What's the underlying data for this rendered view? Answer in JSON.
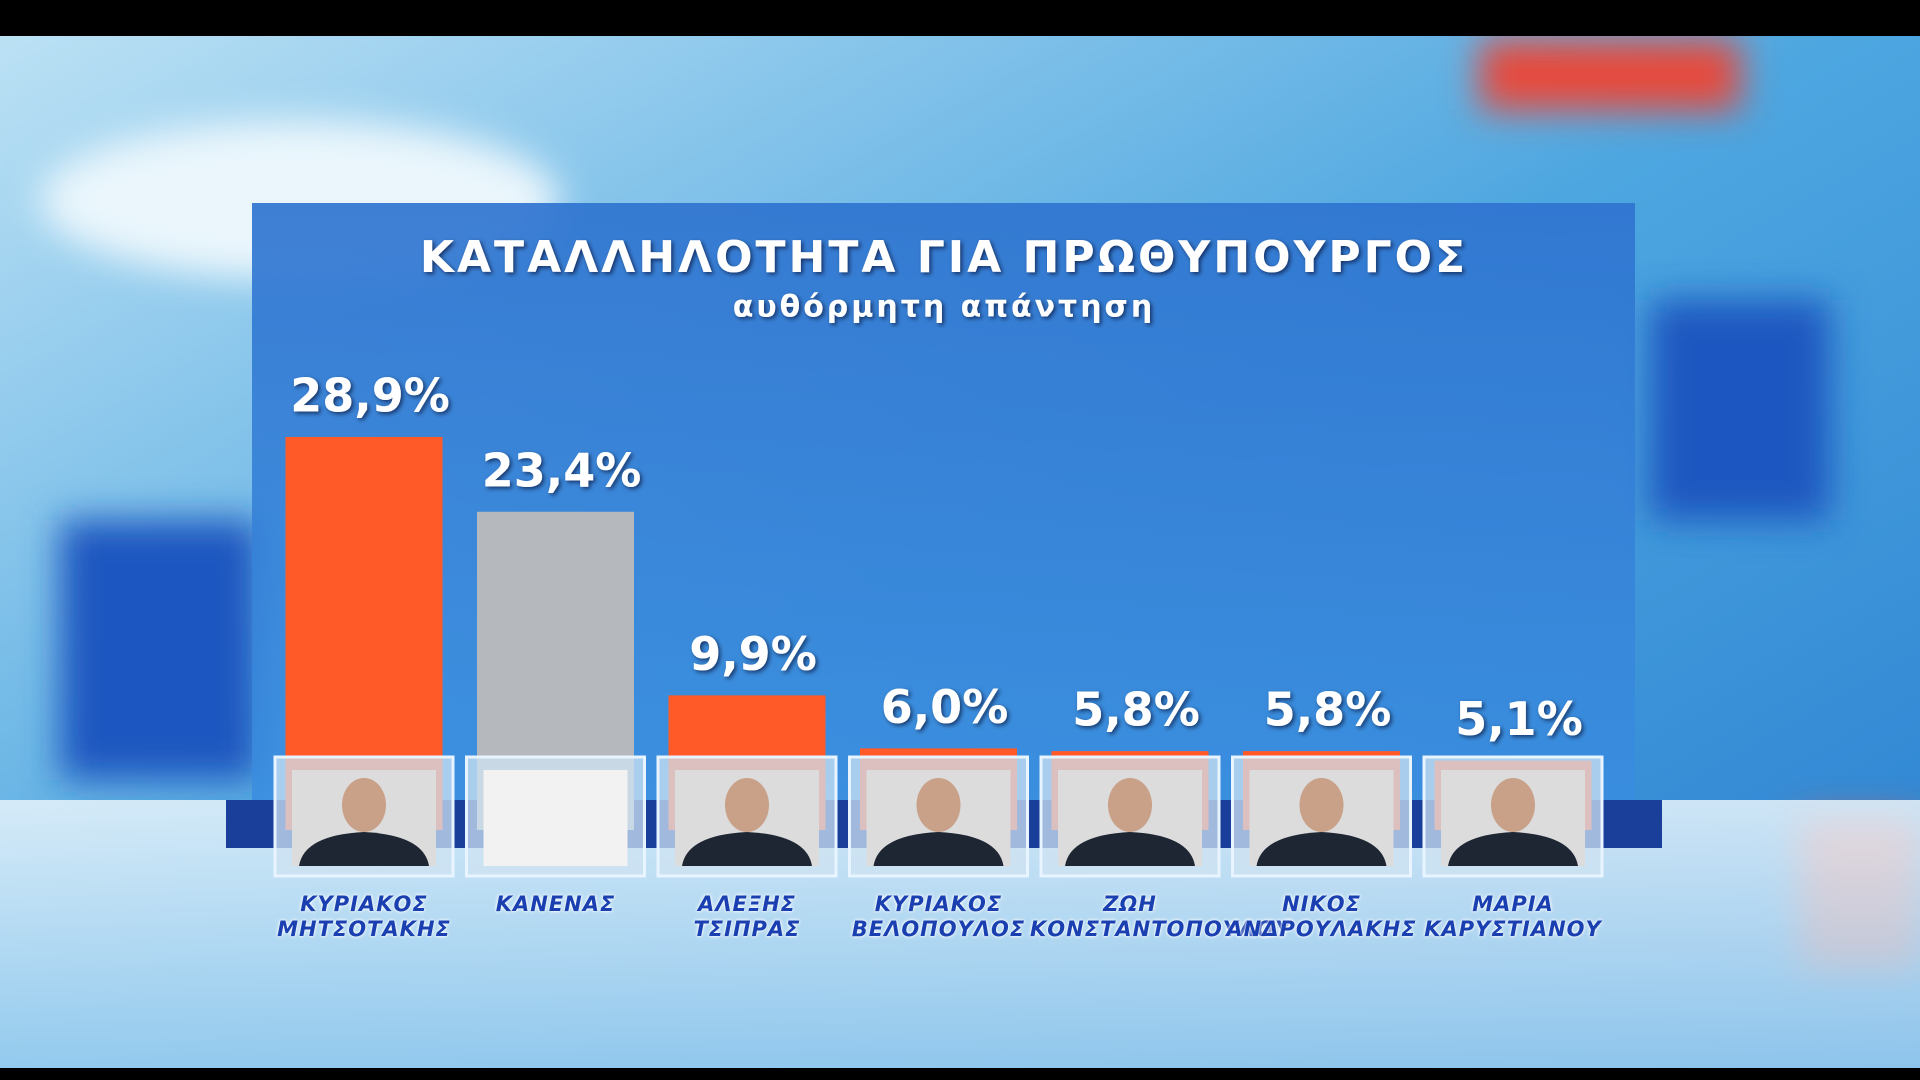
{
  "chart_data": {
    "type": "bar",
    "title": "ΚΑΤΑΛΛΗΛΟΤΗΤΑ ΓΙΑ ΠΡΩΘΥΠΟΥΡΓΟΣ",
    "subtitle": "αυθόρμητη απάντηση",
    "categories": [
      "ΚΥΡΙΑΚΟΣ ΜΗΤΣΟΤΑΚΗΣ",
      "ΚΑΝΕΝΑΣ",
      "ΑΛΕΞΗΣ ΤΣΙΠΡΑΣ",
      "ΚΥΡΙΑΚΟΣ ΒΕΛΟΠΟΥΛΟΣ",
      "ΖΩΗ ΚΟΝΣΤΑΝΤΟΠΟΥΛΟΥ",
      "ΝΙΚΟΣ ΑΝΔΡΟΥΛΑΚΗΣ",
      "ΜΑΡΙΑ ΚΑΡΥΣΤΙΑΝΟΥ"
    ],
    "values": [
      28.9,
      23.4,
      9.9,
      6.0,
      5.8,
      5.8,
      5.1
    ],
    "value_labels": [
      "28,9%",
      "23,4%",
      "9,9%",
      "6,0%",
      "5,8%",
      "5,8%",
      "5,1%"
    ],
    "colors": [
      "#ff5a28",
      "#b5b9bd",
      "#ff5a28",
      "#ff5a28",
      "#ff5a28",
      "#ff5a28",
      "#ff5a28"
    ]
  }
}
